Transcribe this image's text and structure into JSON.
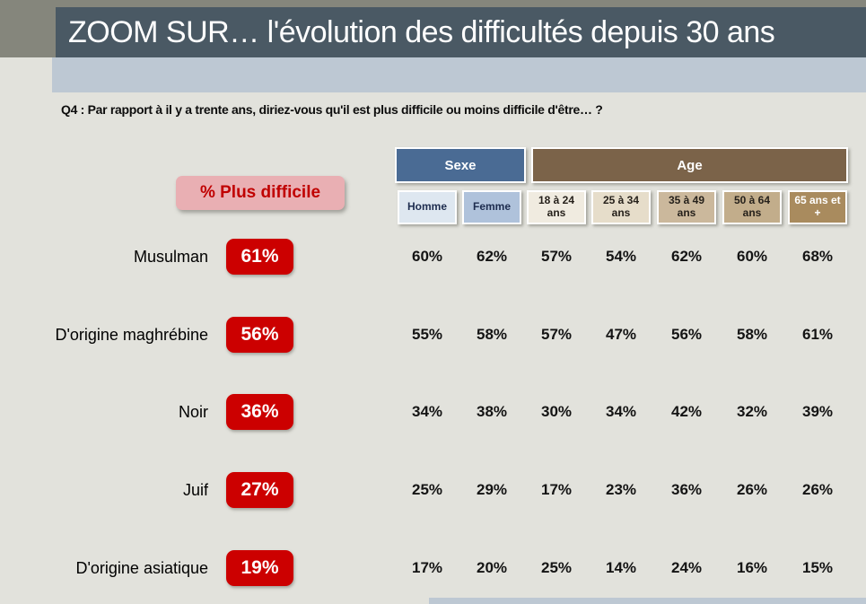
{
  "slide": {
    "title": "ZOOM SUR… l'évolution des difficultés depuis 30 ans",
    "question": "Q4 : Par rapport à il y a trente ans, diriez-vous qu'il est plus difficile ou moins difficile d'être… ?",
    "metric_label": "% Plus difficile"
  },
  "colors": {
    "background": "#E2E2DC",
    "olive_band": "#85867C",
    "title_bar": "#4A5964",
    "subtitle_strip": "#BDC8D3",
    "badge_red": "#CC0000",
    "metric_pink": "#E9AFB3",
    "metric_text": "#C00000"
  },
  "table": {
    "groups": [
      {
        "label": "Sexe",
        "bg": "#4A6B94"
      },
      {
        "label": "Age",
        "bg": "#7B6349"
      }
    ],
    "columns": [
      {
        "label": "Homme",
        "bg": "#DEE7F0",
        "text": "#1E2D4F"
      },
      {
        "label": "Femme",
        "bg": "#AFC2DB",
        "text": "#1E2D4F"
      },
      {
        "label": "18 à 24 ans",
        "bg": "#F0EBE0",
        "text": "#26211B"
      },
      {
        "label": "25 à 34 ans",
        "bg": "#E6DDCA",
        "text": "#26211B"
      },
      {
        "label": "35 à 49 ans",
        "bg": "#CBB89C",
        "text": "#26211B"
      },
      {
        "label": "50 à 64 ans",
        "bg": "#C2AD8B",
        "text": "#26211B"
      },
      {
        "label": "65 ans et +",
        "bg": "#A98B5E",
        "text": "#FFFFFF"
      }
    ],
    "rows": [
      {
        "label": "Musulman",
        "total": "61%",
        "values": [
          "60%",
          "62%",
          "57%",
          "54%",
          "62%",
          "60%",
          "68%"
        ]
      },
      {
        "label": "D'origine maghrébine",
        "total": "56%",
        "values": [
          "55%",
          "58%",
          "57%",
          "47%",
          "56%",
          "58%",
          "61%"
        ]
      },
      {
        "label": "Noir",
        "total": "36%",
        "values": [
          "34%",
          "38%",
          "30%",
          "34%",
          "42%",
          "32%",
          "39%"
        ]
      },
      {
        "label": "Juif",
        "total": "27%",
        "values": [
          "25%",
          "29%",
          "17%",
          "23%",
          "36%",
          "26%",
          "26%"
        ]
      },
      {
        "label": "D'origine asiatique",
        "total": "19%",
        "values": [
          "17%",
          "20%",
          "25%",
          "14%",
          "24%",
          "16%",
          "15%"
        ]
      }
    ]
  },
  "chart_data": {
    "type": "table",
    "title": "ZOOM SUR… l'évolution des difficultés depuis 30 ans",
    "question": "Q4 : Par rapport à il y a trente ans, diriez-vous qu'il est plus difficile ou moins difficile d'être… ?",
    "metric": "% Plus difficile",
    "column_groups": [
      {
        "label": "Sexe",
        "columns": [
          "Homme",
          "Femme"
        ]
      },
      {
        "label": "Age",
        "columns": [
          "18 à 24 ans",
          "25 à 34 ans",
          "35 à 49 ans",
          "50 à 64 ans",
          "65 ans et +"
        ]
      }
    ],
    "rows": [
      {
        "category": "Musulman",
        "total_pct": 61,
        "by_column_pct": [
          60,
          62,
          57,
          54,
          62,
          60,
          68
        ]
      },
      {
        "category": "D'origine maghrébine",
        "total_pct": 56,
        "by_column_pct": [
          55,
          58,
          57,
          47,
          56,
          58,
          61
        ]
      },
      {
        "category": "Noir",
        "total_pct": 36,
        "by_column_pct": [
          34,
          38,
          30,
          34,
          42,
          32,
          39
        ]
      },
      {
        "category": "Juif",
        "total_pct": 27,
        "by_column_pct": [
          25,
          29,
          17,
          23,
          36,
          26,
          26
        ]
      },
      {
        "category": "D'origine asiatique",
        "total_pct": 19,
        "by_column_pct": [
          17,
          20,
          25,
          14,
          24,
          16,
          15
        ]
      }
    ],
    "units": "percent"
  }
}
